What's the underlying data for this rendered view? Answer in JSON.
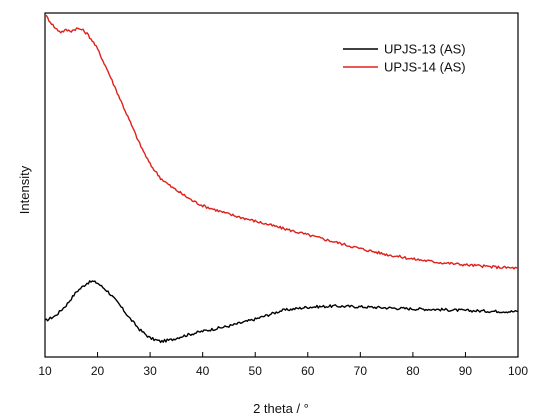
{
  "chart_data": {
    "type": "line",
    "xlabel": "2 theta / °",
    "ylabel": "Intensity",
    "xlim": [
      10,
      100
    ],
    "ylim": [
      0,
      1
    ],
    "x_ticks": [
      10,
      20,
      30,
      40,
      50,
      60,
      70,
      80,
      90,
      100
    ],
    "y_ticks": [],
    "grid": false,
    "legend_position": "top-right",
    "series": [
      {
        "name": "UPJS-13 (AS)",
        "color": "#000000",
        "x": [
          10,
          12,
          14,
          16,
          18,
          19,
          20,
          22,
          24,
          26,
          28,
          30,
          32,
          34,
          36,
          40,
          45,
          50,
          55,
          60,
          65,
          70,
          75,
          80,
          85,
          90,
          95,
          100
        ],
        "y": [
          0.105,
          0.12,
          0.15,
          0.19,
          0.215,
          0.22,
          0.215,
          0.19,
          0.155,
          0.115,
          0.08,
          0.055,
          0.045,
          0.05,
          0.06,
          0.075,
          0.09,
          0.11,
          0.135,
          0.145,
          0.148,
          0.146,
          0.143,
          0.14,
          0.138,
          0.135,
          0.133,
          0.132
        ]
      },
      {
        "name": "UPJS-14 (AS)",
        "color": "#e0201b",
        "x": [
          10,
          11,
          12,
          13,
          14,
          15,
          16,
          17,
          18,
          19,
          20,
          22,
          24,
          26,
          28,
          30,
          32,
          34,
          36,
          38,
          40,
          45,
          50,
          55,
          60,
          65,
          70,
          75,
          80,
          85,
          90,
          95,
          100
        ],
        "y": [
          0.995,
          0.975,
          0.955,
          0.945,
          0.95,
          0.948,
          0.955,
          0.952,
          0.94,
          0.92,
          0.895,
          0.83,
          0.76,
          0.69,
          0.62,
          0.56,
          0.52,
          0.495,
          0.475,
          0.455,
          0.44,
          0.415,
          0.395,
          0.375,
          0.355,
          0.335,
          0.315,
          0.298,
          0.285,
          0.275,
          0.268,
          0.262,
          0.258
        ]
      }
    ]
  }
}
